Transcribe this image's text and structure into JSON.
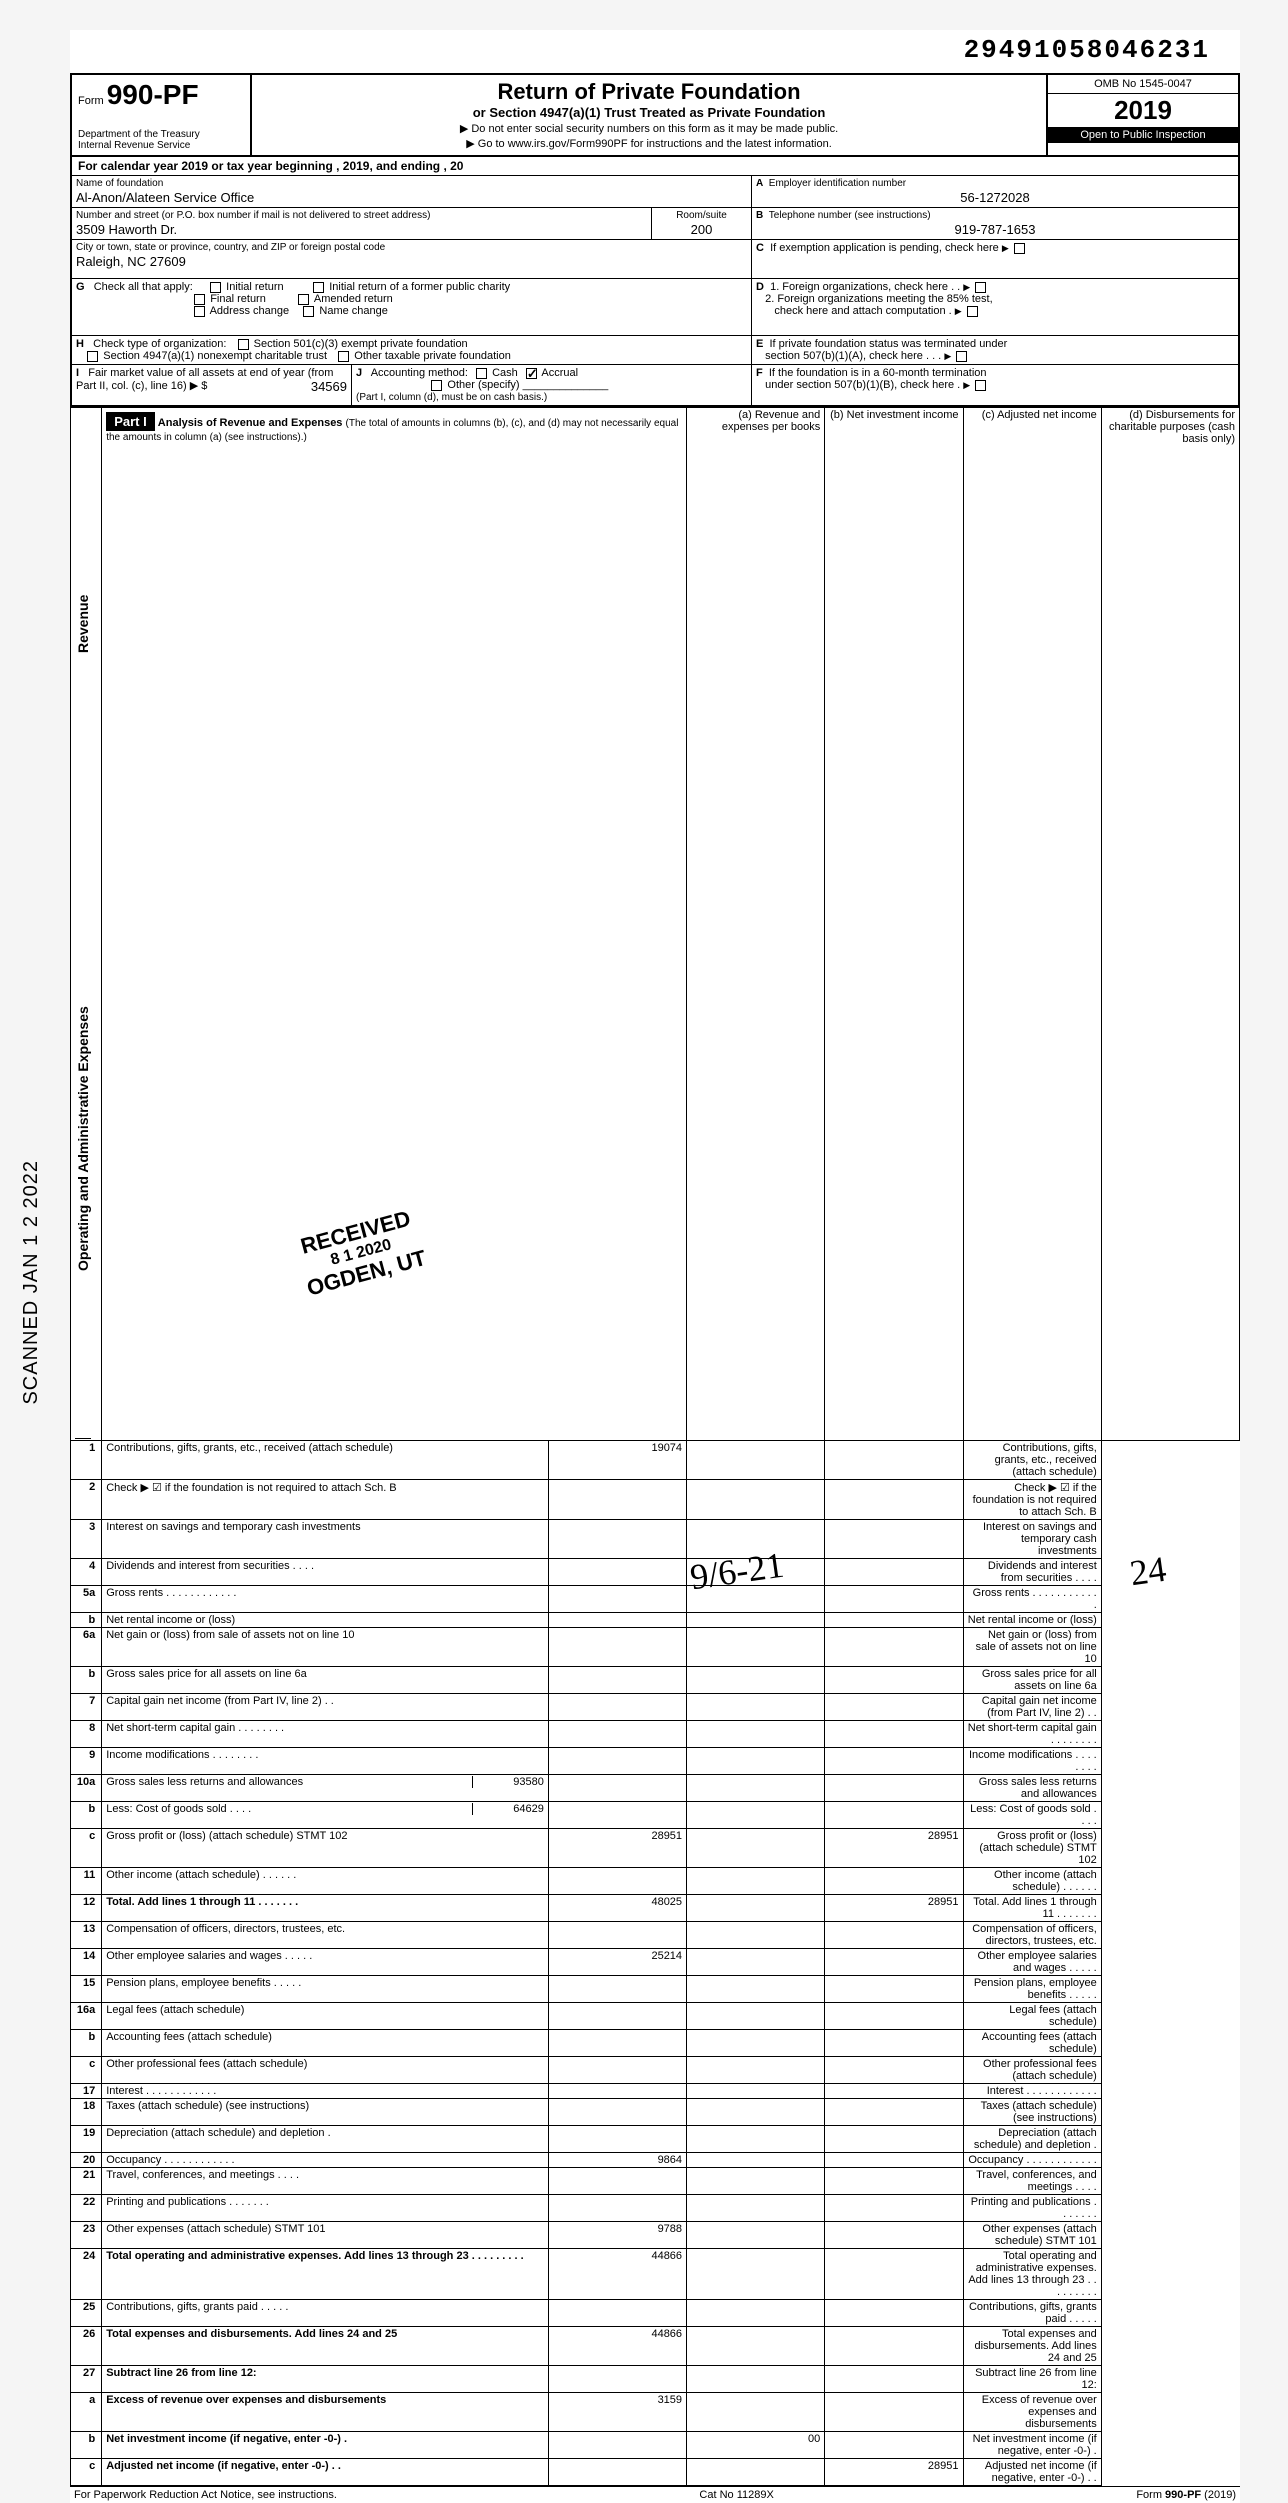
{
  "dln": "29491058046231",
  "form": {
    "prefix": "Form",
    "number": "990-PF",
    "dept": "Department of the Treasury",
    "irs": "Internal Revenue Service",
    "title": "Return of Private Foundation",
    "subtitle": "or Section 4947(a)(1) Trust Treated as Private Foundation",
    "note1": "▶ Do not enter social security numbers on this form as it may be made public.",
    "note2": "▶ Go to www.irs.gov/Form990PF for instructions and the latest information.",
    "omb": "OMB No  1545-0047",
    "year_prefix": "20",
    "year_bold": "19",
    "inspect": "Open to Public Inspection"
  },
  "cal": "For calendar year 2019 or tax year beginning                                          , 2019, and ending                                          , 20",
  "foundation": {
    "name_label": "Name of foundation",
    "name": "Al-Anon/Alateen Service Office",
    "addr_label": "Number and street (or P.O. box number if mail is not delivered to street address)",
    "addr": "3509 Haworth Dr.",
    "room_label": "Room/suite",
    "room": "200",
    "city_label": "City or town, state or province, country, and ZIP or foreign postal code",
    "city": "Raleigh, NC  27609"
  },
  "blockA": {
    "label": "A",
    "text": "Employer identification number",
    "value": "56-1272028"
  },
  "blockB": {
    "label": "B",
    "text": "Telephone number (see instructions)",
    "value": "919-787-1653"
  },
  "blockC": {
    "label": "C",
    "text": "If exemption application is pending, check here"
  },
  "blockD": {
    "label": "D",
    "d1": "1. Foreign organizations, check here",
    "d2a": "2. Foreign organizations meeting the 85% test,",
    "d2b": "check here and attach computation"
  },
  "blockE": {
    "label": "E",
    "e1": "If private foundation status was terminated under",
    "e2": "section 507(b)(1)(A), check here"
  },
  "blockF": {
    "label": "F",
    "f1": "If the foundation is in a 60-month termination",
    "f2": "under section 507(b)(1)(B), check here"
  },
  "G": {
    "label": "G",
    "text": "Check all that apply:",
    "opts": [
      "Initial return",
      "Final return",
      "Address change",
      "Initial return of a former public charity",
      "Amended return",
      "Name change"
    ]
  },
  "H": {
    "label": "H",
    "text": "Check type of organization:",
    "opts": [
      "Section 501(c)(3) exempt private foundation",
      "Section 4947(a)(1) nonexempt charitable trust",
      "Other taxable private foundation"
    ]
  },
  "I": {
    "label": "I",
    "text": "Fair market value of all assets at end of year  (from Part II, col. (c), line 16) ▶ $",
    "value": "34569"
  },
  "J": {
    "label": "J",
    "text": "Accounting method:",
    "cash": "Cash",
    "accrual": "Accrual",
    "other": "Other (specify)",
    "note": "(Part I, column (d), must be on cash basis.)"
  },
  "part1": {
    "label": "Part I",
    "title": "Analysis of Revenue and Expenses",
    "sub": "(The total of amounts in columns (b), (c), and (d) may not necessarily equal the amounts in column (a) (see instructions).)",
    "cols": {
      "a": "(a) Revenue and expenses per books",
      "b": "(b) Net investment income",
      "c": "(c) Adjusted net income",
      "d": "(d) Disbursements for charitable purposes (cash basis only)"
    }
  },
  "vert_revenue": "Revenue",
  "vert_expenses": "Operating and Administrative Expenses",
  "lines": [
    {
      "n": "1",
      "d": "Contributions, gifts, grants, etc., received (attach schedule)",
      "a": "19074",
      "shade_bcd": false,
      "shade_d": true
    },
    {
      "n": "2",
      "d": "Check ▶ ☑ if the foundation is not required to attach Sch. B",
      "shade_all": true
    },
    {
      "n": "3",
      "d": "Interest on savings and temporary cash investments"
    },
    {
      "n": "4",
      "d": "Dividends and interest from securities   .   .   .   ."
    },
    {
      "n": "5a",
      "d": "Gross rents   .   .   .   .   .   .   .   .   .   .   .   ."
    },
    {
      "n": "b",
      "d": "Net rental income or (loss)"
    },
    {
      "n": "6a",
      "d": "Net gain or (loss) from sale of assets not on line 10"
    },
    {
      "n": "b",
      "d": "Gross sales price for all assets on line 6a"
    },
    {
      "n": "7",
      "d": "Capital gain net income (from Part IV, line 2)   .  ."
    },
    {
      "n": "8",
      "d": "Net short-term capital gain .   .   .   .   .   .   .   ."
    },
    {
      "n": "9",
      "d": "Income modifications   .   .   .   .   .   .   .   ."
    },
    {
      "n": "10a",
      "d": "Gross sales less returns and allowances",
      "inset": "93580"
    },
    {
      "n": "b",
      "d": "Less: Cost of goods sold   .   .   .   .",
      "inset": "64629"
    },
    {
      "n": "c",
      "d": "Gross profit or (loss) (attach schedule) STMT 102",
      "a": "28951",
      "c": "28951"
    },
    {
      "n": "11",
      "d": "Other income (attach schedule)   .   .   .   .   .   ."
    },
    {
      "n": "12",
      "d": "Total. Add lines 1 through 11   .   .   .   .   .   .   .",
      "a": "48025",
      "c": "28951",
      "bold": true
    },
    {
      "n": "13",
      "d": "Compensation of officers, directors, trustees, etc."
    },
    {
      "n": "14",
      "d": "Other employee salaries and wages .   .   .   .   .",
      "a": "25214"
    },
    {
      "n": "15",
      "d": "Pension plans, employee benefits   .   .   .   .   ."
    },
    {
      "n": "16a",
      "d": "Legal fees (attach schedule)"
    },
    {
      "n": "b",
      "d": "Accounting fees (attach schedule)"
    },
    {
      "n": "c",
      "d": "Other professional fees (attach schedule)"
    },
    {
      "n": "17",
      "d": "Interest   .   .   .   .   .   .   .   .   .   .   .   ."
    },
    {
      "n": "18",
      "d": "Taxes (attach schedule) (see instructions)"
    },
    {
      "n": "19",
      "d": "Depreciation (attach schedule) and depletion   ."
    },
    {
      "n": "20",
      "d": "Occupancy .   .   .   .   .   .   .   .   .   .   .   .",
      "a": "9864"
    },
    {
      "n": "21",
      "d": "Travel, conferences, and meetings   .   .   .   ."
    },
    {
      "n": "22",
      "d": "Printing and publications   .   .   .   .   .   .   ."
    },
    {
      "n": "23",
      "d": "Other expenses (attach schedule)  STMT 101",
      "a": "9788"
    },
    {
      "n": "24",
      "d": "Total operating and administrative expenses. Add lines 13 through 23 .   .   .   .   .   .   .   .   .",
      "a": "44866",
      "bold": true
    },
    {
      "n": "25",
      "d": "Contributions, gifts, grants paid   .   .   .   .   ."
    },
    {
      "n": "26",
      "d": "Total expenses and disbursements. Add lines 24 and 25",
      "a": "44866",
      "bold": true
    },
    {
      "n": "27",
      "d": "Subtract line 26 from line 12:",
      "bold": true
    },
    {
      "n": "a",
      "d": "Excess of revenue over expenses and disbursements",
      "a": "3159",
      "bold": true
    },
    {
      "n": "b",
      "d": "Net investment income (if negative, enter -0-)   .",
      "b": "00",
      "bold": true
    },
    {
      "n": "c",
      "d": "Adjusted net income (if negative, enter -0-)   .   .",
      "c": "28951",
      "bold": true
    }
  ],
  "footer": {
    "left": "For Paperwork Reduction Act Notice, see instructions.",
    "mid": "Cat No  11289X",
    "right": "Form 990-PF (2019)"
  },
  "sidebar": "SCANNED  JAN 1 2 2022",
  "stamp": {
    "l1": "RECEIVED",
    "l2": "8 1 2020",
    "l3": "OGDEN, UT"
  },
  "hand_date": "9/6-21",
  "hand_num": "24"
}
